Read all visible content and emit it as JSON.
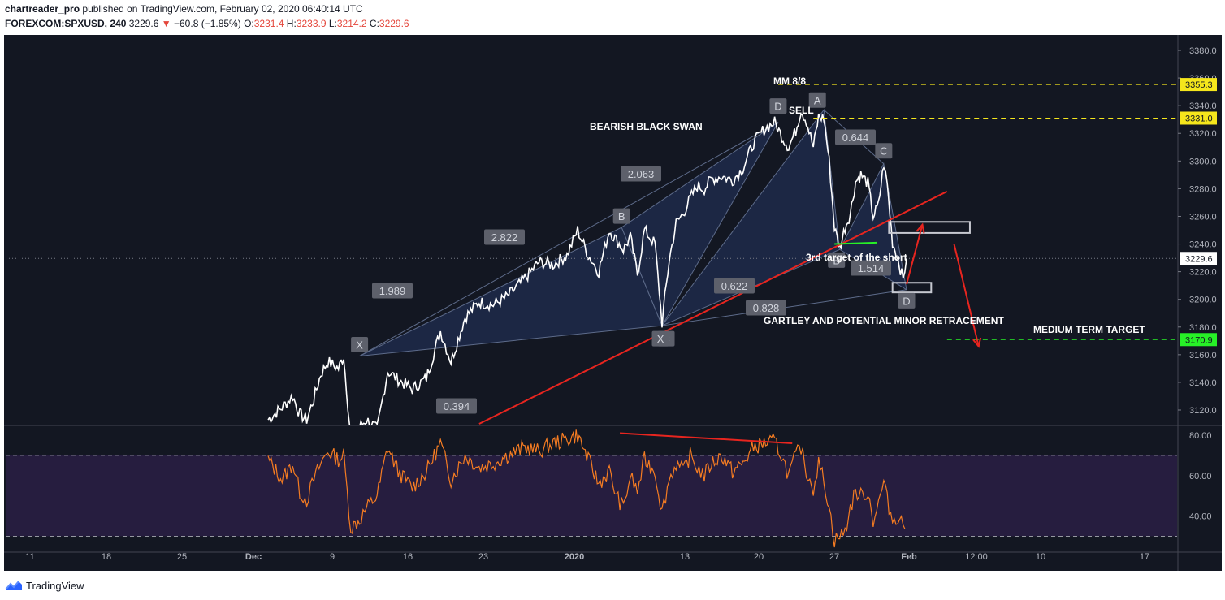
{
  "header": {
    "author": "chartreader_pro",
    "published_text": "published on TradingView.com, February 02, 2020 06:40:14 UTC",
    "symbol": "FOREXCOM:SPXUSD, 240",
    "last_price": "3229.6",
    "change_arrow": "▼",
    "change": "−60.8 (−1.85%)",
    "o_label": "O:",
    "o_value": "3231.4",
    "h_label": "H:",
    "h_value": "3233.9",
    "l_label": "L:",
    "l_value": "3214.2",
    "c_label": "C:",
    "c_value": "3229.6"
  },
  "footer": {
    "brand": "TradingView"
  },
  "colors": {
    "background": "#131722",
    "pattern_fill": "#1e2a4a",
    "trendline": "#e8251f",
    "mm_level": "#f5e61c",
    "target_level": "#27f127",
    "rsi_line": "#f57c22",
    "rsi_band": "#2a1e44"
  },
  "chart_data": {
    "type": "line",
    "symbol": "FOREXCOM:SPXUSD",
    "timeframe": "240",
    "x_ticks": [
      "11",
      "18",
      "25",
      "Dec",
      "9",
      "16",
      "23",
      "2020",
      "13",
      "20",
      "27",
      "Feb",
      "12:00",
      "10",
      "17"
    ],
    "y_ticks": [
      "3380.0",
      "3360.0",
      "3340.0",
      "3320.0",
      "3300.0",
      "3280.0",
      "3260.0",
      "3240.0",
      "3220.0",
      "3200.0",
      "3180.0",
      "3160.0",
      "3140.0",
      "3120.0"
    ],
    "ylim": [
      3110,
      3392
    ],
    "price_path": [
      [
        0,
        3113
      ],
      [
        8,
        3122
      ],
      [
        14,
        3130
      ],
      [
        18,
        3117
      ],
      [
        22,
        3113
      ],
      [
        26,
        3128
      ],
      [
        30,
        3146
      ],
      [
        34,
        3155
      ],
      [
        40,
        3150
      ],
      [
        43,
        3159
      ],
      [
        47,
        3100
      ],
      [
        52,
        3108
      ],
      [
        56,
        3113
      ],
      [
        62,
        3106
      ],
      [
        68,
        3148
      ],
      [
        74,
        3142
      ],
      [
        82,
        3135
      ],
      [
        90,
        3143
      ],
      [
        98,
        3177
      ],
      [
        104,
        3155
      ],
      [
        112,
        3187
      ],
      [
        120,
        3198
      ],
      [
        128,
        3196
      ],
      [
        136,
        3202
      ],
      [
        146,
        3215
      ],
      [
        154,
        3227
      ],
      [
        162,
        3225
      ],
      [
        170,
        3232
      ],
      [
        176,
        3250
      ],
      [
        182,
        3232
      ],
      [
        188,
        3220
      ],
      [
        194,
        3250
      ],
      [
        198,
        3243
      ],
      [
        202,
        3236
      ],
      [
        206,
        3245
      ],
      [
        210,
        3218
      ],
      [
        214,
        3250
      ],
      [
        220,
        3240
      ],
      [
        224,
        3183
      ],
      [
        228,
        3228
      ],
      [
        232,
        3255
      ],
      [
        236,
        3262
      ],
      [
        240,
        3273
      ],
      [
        244,
        3282
      ],
      [
        248,
        3280
      ],
      [
        252,
        3287
      ],
      [
        258,
        3289
      ],
      [
        264,
        3286
      ],
      [
        270,
        3295
      ],
      [
        276,
        3313
      ],
      [
        282,
        3323
      ],
      [
        288,
        3328
      ],
      [
        292,
        3318
      ],
      [
        296,
        3310
      ],
      [
        300,
        3322
      ],
      [
        303,
        3337
      ],
      [
        306,
        3329
      ],
      [
        310,
        3310
      ],
      [
        313,
        3332
      ],
      [
        316,
        3331
      ],
      [
        319,
        3300
      ],
      [
        322,
        3252
      ],
      [
        325,
        3237
      ],
      [
        328,
        3252
      ],
      [
        331,
        3262
      ],
      [
        334,
        3285
      ],
      [
        337,
        3290
      ],
      [
        341,
        3284
      ],
      [
        344,
        3260
      ],
      [
        347,
        3268
      ],
      [
        350,
        3298
      ],
      [
        352,
        3283
      ],
      [
        355,
        3241
      ],
      [
        358,
        3230
      ],
      [
        361,
        3214
      ],
      [
        363,
        3229.6
      ]
    ],
    "current_price": "3229.6",
    "levels": [
      {
        "label": "MM 8/8",
        "value": "3355.3",
        "color": "#f5e61c"
      },
      {
        "label": "",
        "value": "3331.0",
        "color": "#f5e61c"
      },
      {
        "label": "MEDIUM TERM TARGET",
        "value": "3170.9",
        "color": "#27f127"
      }
    ],
    "patterns": [
      {
        "name": "BEARISH BLACK SWAN",
        "points": [
          {
            "label": "X",
            "t": 52,
            "p": 3159
          },
          {
            "label": "B",
            "t": 201,
            "p": 3252
          },
          {
            "label": "C",
            "t": 224,
            "p": 3181
          },
          {
            "label": "D",
            "t": 290,
            "p": 3328
          }
        ],
        "ratios": [
          "1.989",
          "2.822",
          "2.063",
          "0.394"
        ]
      },
      {
        "name": "GARTLEY AND POTENTIAL MINOR RETRACEMENT",
        "points": [
          {
            "label": "X",
            "t": 224,
            "p": 3181
          },
          {
            "label": "A",
            "t": 316,
            "p": 3337
          },
          {
            "label": "B",
            "t": 325,
            "p": 3236
          },
          {
            "label": "C",
            "t": 350,
            "p": 3298
          },
          {
            "label": "D",
            "t": 363,
            "p": 3207
          }
        ],
        "ratios": [
          "0.644",
          "0.622",
          "1.514",
          "0.828"
        ]
      }
    ],
    "annotations": [
      "SELL",
      "3rd target of the short",
      "BEARISH BLACK SWAN",
      "GARTLEY AND POTENTIAL MINOR RETRACEMENT",
      "MEDIUM TERM TARGET"
    ],
    "rsi": {
      "y_ticks": [
        "80.00",
        "60.00",
        "40.00"
      ],
      "ylim": [
        22,
        86
      ],
      "upper_band": 70,
      "lower_band": 30,
      "values": [
        [
          0,
          68
        ],
        [
          8,
          58
        ],
        [
          14,
          66
        ],
        [
          18,
          52
        ],
        [
          22,
          48
        ],
        [
          26,
          58
        ],
        [
          30,
          66
        ],
        [
          34,
          72
        ],
        [
          40,
          68
        ],
        [
          43,
          70
        ],
        [
          47,
          34
        ],
        [
          52,
          38
        ],
        [
          56,
          44
        ],
        [
          62,
          50
        ],
        [
          68,
          74
        ],
        [
          74,
          62
        ],
        [
          82,
          54
        ],
        [
          90,
          62
        ],
        [
          98,
          76
        ],
        [
          104,
          58
        ],
        [
          112,
          70
        ],
        [
          120,
          64
        ],
        [
          128,
          66
        ],
        [
          136,
          70
        ],
        [
          146,
          74
        ],
        [
          154,
          72
        ],
        [
          162,
          76
        ],
        [
          170,
          78
        ],
        [
          176,
          80
        ],
        [
          182,
          68
        ],
        [
          188,
          56
        ],
        [
          194,
          62
        ],
        [
          198,
          50
        ],
        [
          202,
          44
        ],
        [
          206,
          60
        ],
        [
          210,
          52
        ],
        [
          214,
          68
        ],
        [
          220,
          62
        ],
        [
          224,
          42
        ],
        [
          228,
          58
        ],
        [
          232,
          66
        ],
        [
          236,
          62
        ],
        [
          240,
          70
        ],
        [
          244,
          64
        ],
        [
          248,
          60
        ],
        [
          252,
          66
        ],
        [
          258,
          70
        ],
        [
          264,
          62
        ],
        [
          270,
          66
        ],
        [
          276,
          74
        ],
        [
          282,
          76
        ],
        [
          288,
          77
        ],
        [
          292,
          70
        ],
        [
          296,
          60
        ],
        [
          300,
          70
        ],
        [
          303,
          74
        ],
        [
          306,
          62
        ],
        [
          310,
          54
        ],
        [
          313,
          66
        ],
        [
          316,
          58
        ],
        [
          319,
          44
        ],
        [
          322,
          28
        ],
        [
          325,
          30
        ],
        [
          328,
          32
        ],
        [
          331,
          44
        ],
        [
          334,
          52
        ],
        [
          337,
          50
        ],
        [
          341,
          52
        ],
        [
          344,
          38
        ],
        [
          347,
          46
        ],
        [
          350,
          57
        ],
        [
          352,
          48
        ],
        [
          355,
          38
        ],
        [
          358,
          40
        ],
        [
          361,
          36
        ],
        [
          363,
          36
        ]
      ]
    }
  }
}
